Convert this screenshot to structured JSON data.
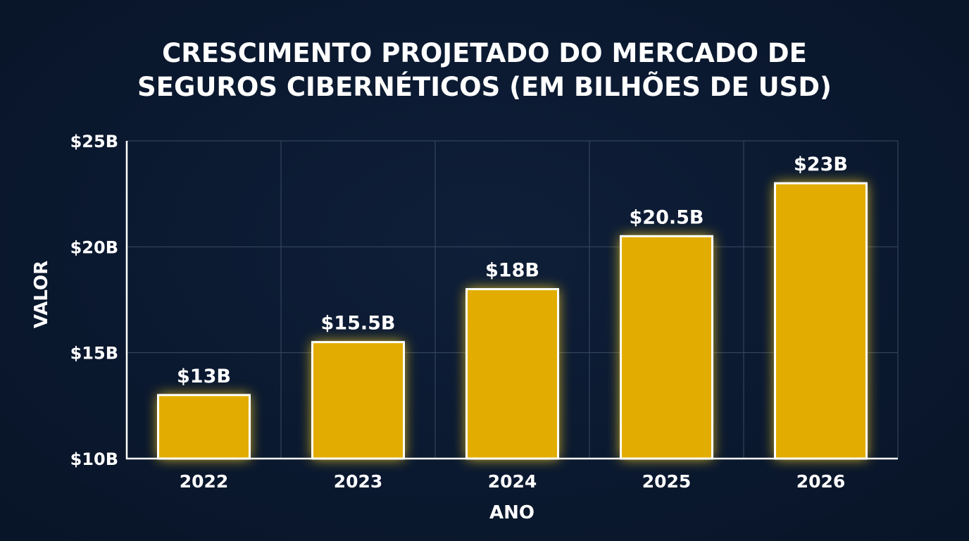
{
  "chart_data": {
    "type": "bar",
    "title_lines": [
      "CRESCIMENTO PROJETADO DO MERCADO DE",
      "SEGUROS CIBERNÉTICOS (EM BILHÕES DE USD)"
    ],
    "xlabel": "ANO",
    "ylabel": "VALOR",
    "categories": [
      "2022",
      "2023",
      "2024",
      "2025",
      "2026"
    ],
    "values": [
      13,
      15.5,
      18,
      20.5,
      23
    ],
    "data_labels": [
      "$13B",
      "$15.5B",
      "$18B",
      "$20.5B",
      "$23B"
    ],
    "ylim": [
      10,
      25
    ],
    "y_ticks": [
      {
        "value": 10,
        "label": "$10B"
      },
      {
        "value": 15,
        "label": "$15B"
      },
      {
        "value": 20,
        "label": "$20B"
      },
      {
        "value": 25,
        "label": "$25B"
      }
    ],
    "grid": true,
    "colors": {
      "bar": "#e2ad00",
      "bar_edge": "#ffffff",
      "glow": "#ffd21a",
      "grid": "#3a4a63"
    }
  }
}
